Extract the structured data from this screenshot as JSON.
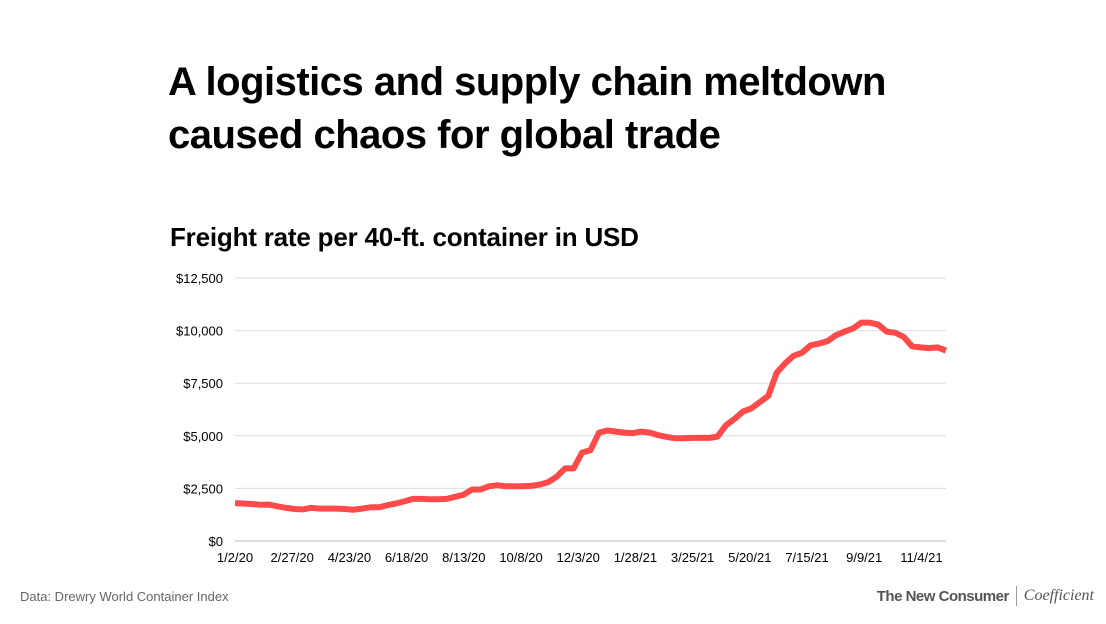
{
  "title_lines": [
    "A logistics and supply chain meltdown",
    "caused chaos for global trade"
  ],
  "subtitle": "Freight rate per 40-ft. container in USD",
  "source": "Data: Drewry World Container Index",
  "brand": {
    "primary": "The New Consumer",
    "secondary": "Coefficient"
  },
  "colors": {
    "line": "#ff4a4a",
    "grid": "#dddddd",
    "text": "#000000"
  },
  "chart_data": {
    "type": "line",
    "title": "Freight rate per 40-ft. container in USD",
    "xlabel": "",
    "ylabel": "",
    "ylim": [
      0,
      12500
    ],
    "y_ticks": [
      0,
      2500,
      5000,
      7500,
      10000,
      12500
    ],
    "y_tick_labels": [
      "$0",
      "$2,500",
      "$5,000",
      "$7,500",
      "$10,000",
      "$12,500"
    ],
    "x_tick_labels": [
      "1/2/20",
      "2/27/20",
      "4/23/20",
      "6/18/20",
      "8/13/20",
      "10/8/20",
      "12/3/20",
      "1/28/21",
      "3/25/21",
      "5/20/21",
      "7/15/21",
      "9/9/21",
      "11/4/21"
    ],
    "grid": true,
    "legend": "none",
    "series": [
      {
        "values": [
          1800,
          1780,
          1760,
          1720,
          1730,
          1650,
          1580,
          1520,
          1500,
          1580,
          1540,
          1540,
          1540,
          1520,
          1490,
          1540,
          1600,
          1600,
          1700,
          1780,
          1880,
          2000,
          2000,
          1980,
          1980,
          2000,
          2100,
          2200,
          2450,
          2450,
          2600,
          2650,
          2600,
          2600,
          2600,
          2620,
          2680,
          2800,
          3050,
          3450,
          3450,
          4200,
          4320,
          5150,
          5250,
          5200,
          5150,
          5130,
          5200,
          5150,
          5030,
          4950,
          4880,
          4880,
          4900,
          4900,
          4900,
          4960,
          5500,
          5800,
          6150,
          6300,
          6600,
          6900,
          8000,
          8450,
          8800,
          8950,
          9300,
          9380,
          9500,
          9780,
          9950,
          10100,
          10380,
          10380,
          10280,
          9950,
          9900,
          9700,
          9250,
          9200,
          9170,
          9200,
          9050
        ]
      }
    ]
  }
}
